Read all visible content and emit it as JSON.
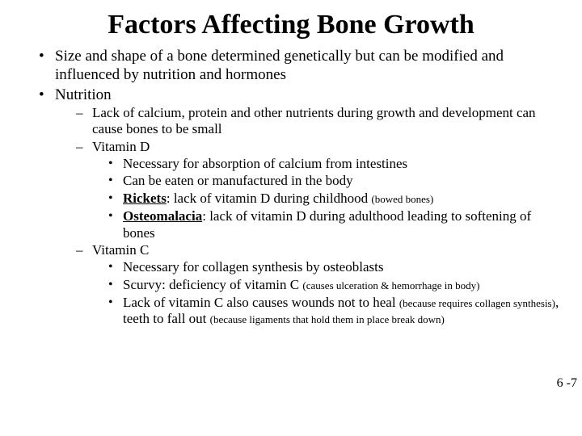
{
  "title": "Factors Affecting Bone Growth",
  "l1": {
    "a": "Size and shape of a bone determined genetically but can be modified and influenced by nutrition and hormones",
    "b": "Nutrition"
  },
  "l2": {
    "a": "Lack of calcium, protein and other nutrients during growth and development can cause bones to be small",
    "b": "Vitamin D",
    "c": "Vitamin C"
  },
  "vd": {
    "a": "Necessary for absorption of calcium from intestines",
    "b": "Can be eaten or manufactured in the body",
    "c_term": "Rickets",
    "c_sep": ": ",
    "c_rest": "lack of vitamin D during childhood ",
    "c_note": "(bowed bones)",
    "d_term": "Osteomalacia",
    "d_sep": ": ",
    "d_rest": "lack of vitamin D during adulthood leading to softening of bones"
  },
  "vc": {
    "a": "Necessary for collagen synthesis by osteoblasts",
    "b_main": "Scurvy: deficiency of vitamin C ",
    "b_note": "(causes ulceration & hemorrhage in body)",
    "c_p1": "Lack of vitamin C also causes wounds not to heal ",
    "c_n1": "(because requires collagen synthesis)",
    "c_p2": ", teeth to fall out ",
    "c_n2": "(because ligaments that hold them in place break down)"
  },
  "pagenum": "6 -7"
}
